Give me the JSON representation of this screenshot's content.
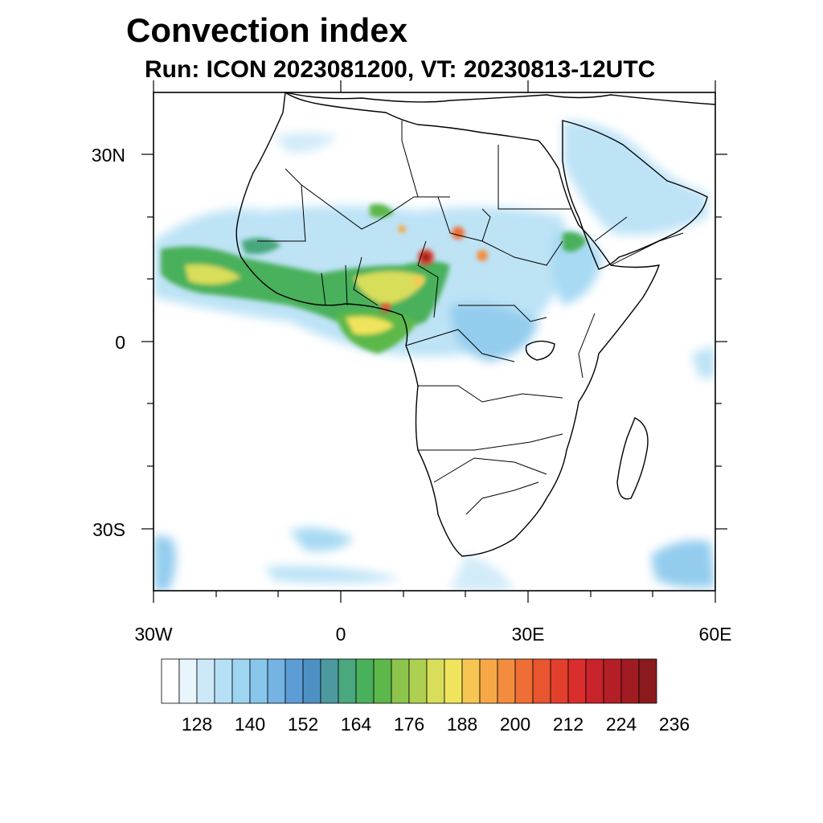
{
  "header": {
    "title": "Convection index",
    "subtitle": "Run: ICON 2023081200,  VT: 20230813-12UTC"
  },
  "map": {
    "lat_labels": [
      "30N",
      "0",
      "30S"
    ],
    "lon_labels": [
      "30W",
      "0",
      "30E",
      "60E"
    ],
    "extent": {
      "lon_min": -30,
      "lon_max": 60,
      "lat_min": -40,
      "lat_max": 40
    }
  },
  "colorbar": {
    "labels": [
      "128",
      "140",
      "152",
      "164",
      "176",
      "188",
      "200",
      "212",
      "224",
      "236"
    ],
    "colors": [
      "#ffffff",
      "#e8f5fc",
      "#cde9f8",
      "#b6e0f5",
      "#9ed6f2",
      "#88c7ec",
      "#74b3e4",
      "#5c9dd6",
      "#4d90c4",
      "#4c9aa0",
      "#4aa77e",
      "#49b05b",
      "#5cb84a",
      "#8cc44c",
      "#aed052",
      "#d8de5a",
      "#f0e45c",
      "#f7c652",
      "#f6a847",
      "#f38c3e",
      "#ef6e35",
      "#e8552f",
      "#e2402d",
      "#d92e2c",
      "#c8232b",
      "#b41f27",
      "#a11b22",
      "#8a1a1c"
    ]
  }
}
